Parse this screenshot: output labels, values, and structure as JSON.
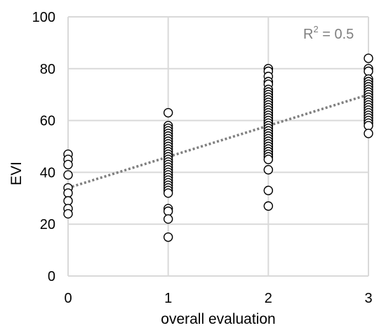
{
  "chart_data": {
    "type": "scatter",
    "title": "",
    "xlabel": "overall evaluation",
    "ylabel": "EVI",
    "xlim": [
      0,
      3
    ],
    "ylim": [
      0,
      100
    ],
    "x_ticks": [
      "0",
      "1",
      "2",
      "3"
    ],
    "y_ticks": [
      "0",
      "20",
      "40",
      "60",
      "80",
      "100"
    ],
    "grid": true,
    "legend": "none",
    "annotation": {
      "text": "R",
      "sup": "2",
      "suffix": " = 0.5"
    },
    "trendline": {
      "type": "linear",
      "style": "dotted",
      "color": "#7f7f7f",
      "x": [
        0,
        3
      ],
      "y": [
        34,
        70
      ]
    },
    "points": [
      {
        "x": 0,
        "y": 47
      },
      {
        "x": 0,
        "y": 45
      },
      {
        "x": 0,
        "y": 43
      },
      {
        "x": 0,
        "y": 39
      },
      {
        "x": 0,
        "y": 34
      },
      {
        "x": 0,
        "y": 32
      },
      {
        "x": 0,
        "y": 29
      },
      {
        "x": 0,
        "y": 26
      },
      {
        "x": 0,
        "y": 24
      },
      {
        "x": 1,
        "y": 63
      },
      {
        "x": 1,
        "y": 58
      },
      {
        "x": 1,
        "y": 57
      },
      {
        "x": 1,
        "y": 56
      },
      {
        "x": 1,
        "y": 55
      },
      {
        "x": 1,
        "y": 54
      },
      {
        "x": 1,
        "y": 53
      },
      {
        "x": 1,
        "y": 52
      },
      {
        "x": 1,
        "y": 51
      },
      {
        "x": 1,
        "y": 50
      },
      {
        "x": 1,
        "y": 49
      },
      {
        "x": 1,
        "y": 48
      },
      {
        "x": 1,
        "y": 47
      },
      {
        "x": 1,
        "y": 46
      },
      {
        "x": 1,
        "y": 45
      },
      {
        "x": 1,
        "y": 44
      },
      {
        "x": 1,
        "y": 43
      },
      {
        "x": 1,
        "y": 42
      },
      {
        "x": 1,
        "y": 41
      },
      {
        "x": 1,
        "y": 40
      },
      {
        "x": 1,
        "y": 39
      },
      {
        "x": 1,
        "y": 38
      },
      {
        "x": 1,
        "y": 37
      },
      {
        "x": 1,
        "y": 36
      },
      {
        "x": 1,
        "y": 35
      },
      {
        "x": 1,
        "y": 34
      },
      {
        "x": 1,
        "y": 33
      },
      {
        "x": 1,
        "y": 32
      },
      {
        "x": 1,
        "y": 26
      },
      {
        "x": 1,
        "y": 25
      },
      {
        "x": 1,
        "y": 22
      },
      {
        "x": 1,
        "y": 15
      },
      {
        "x": 2,
        "y": 80
      },
      {
        "x": 2,
        "y": 79
      },
      {
        "x": 2,
        "y": 77
      },
      {
        "x": 2,
        "y": 75
      },
      {
        "x": 2,
        "y": 74
      },
      {
        "x": 2,
        "y": 72
      },
      {
        "x": 2,
        "y": 71
      },
      {
        "x": 2,
        "y": 70
      },
      {
        "x": 2,
        "y": 69
      },
      {
        "x": 2,
        "y": 68
      },
      {
        "x": 2,
        "y": 67
      },
      {
        "x": 2,
        "y": 66
      },
      {
        "x": 2,
        "y": 65
      },
      {
        "x": 2,
        "y": 64
      },
      {
        "x": 2,
        "y": 63
      },
      {
        "x": 2,
        "y": 62
      },
      {
        "x": 2,
        "y": 61
      },
      {
        "x": 2,
        "y": 60
      },
      {
        "x": 2,
        "y": 59
      },
      {
        "x": 2,
        "y": 58
      },
      {
        "x": 2,
        "y": 57
      },
      {
        "x": 2,
        "y": 56
      },
      {
        "x": 2,
        "y": 55
      },
      {
        "x": 2,
        "y": 54
      },
      {
        "x": 2,
        "y": 53
      },
      {
        "x": 2,
        "y": 52
      },
      {
        "x": 2,
        "y": 51
      },
      {
        "x": 2,
        "y": 50
      },
      {
        "x": 2,
        "y": 49
      },
      {
        "x": 2,
        "y": 48
      },
      {
        "x": 2,
        "y": 47
      },
      {
        "x": 2,
        "y": 46
      },
      {
        "x": 2,
        "y": 45
      },
      {
        "x": 2,
        "y": 41
      },
      {
        "x": 2,
        "y": 33
      },
      {
        "x": 2,
        "y": 27
      },
      {
        "x": 3,
        "y": 84
      },
      {
        "x": 3,
        "y": 80
      },
      {
        "x": 3,
        "y": 79
      },
      {
        "x": 3,
        "y": 76
      },
      {
        "x": 3,
        "y": 75
      },
      {
        "x": 3,
        "y": 74
      },
      {
        "x": 3,
        "y": 73
      },
      {
        "x": 3,
        "y": 72
      },
      {
        "x": 3,
        "y": 71
      },
      {
        "x": 3,
        "y": 70
      },
      {
        "x": 3,
        "y": 69
      },
      {
        "x": 3,
        "y": 68
      },
      {
        "x": 3,
        "y": 67
      },
      {
        "x": 3,
        "y": 66
      },
      {
        "x": 3,
        "y": 65
      },
      {
        "x": 3,
        "y": 64
      },
      {
        "x": 3,
        "y": 63
      },
      {
        "x": 3,
        "y": 62
      },
      {
        "x": 3,
        "y": 61
      },
      {
        "x": 3,
        "y": 60
      },
      {
        "x": 3,
        "y": 59
      },
      {
        "x": 3,
        "y": 58
      },
      {
        "x": 3,
        "y": 55
      }
    ]
  }
}
